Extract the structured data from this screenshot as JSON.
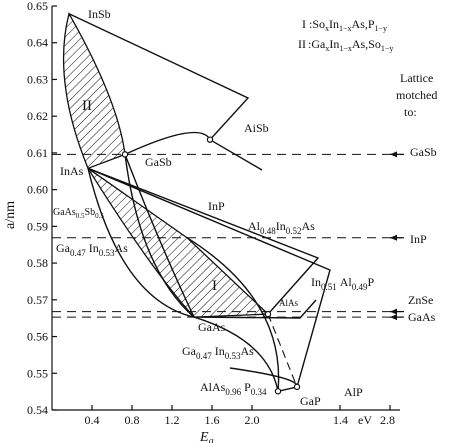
{
  "chart_data": {
    "type": "line",
    "xlabel": "E_g",
    "xlabel_main": "E",
    "xlabel_sub": "g",
    "ylabel": "a/nm",
    "xlim": [
      0,
      2.4
    ],
    "ylim": [
      0.54,
      0.65
    ],
    "x_ticks": [
      {
        "v": 0.4,
        "t": "0.4"
      },
      {
        "v": 0.8,
        "t": "0.8"
      },
      {
        "v": 1.2,
        "t": "1.2"
      },
      {
        "v": 1.6,
        "t": "1.6"
      },
      {
        "v": 2.0,
        "t": "2.0"
      }
    ],
    "x_ticks_right_labels": [
      "1.4",
      "eV",
      "2.8"
    ],
    "y_ticks": [
      {
        "v": 0.54,
        "t": "0.54"
      },
      {
        "v": 0.55,
        "t": "0.55"
      },
      {
        "v": 0.56,
        "t": "0.56"
      },
      {
        "v": 0.57,
        "t": "0.57"
      },
      {
        "v": 0.58,
        "t": "0.58"
      },
      {
        "v": 0.59,
        "t": "0.59"
      },
      {
        "v": 0.6,
        "t": "0.60"
      },
      {
        "v": 0.61,
        "t": "0.61"
      },
      {
        "v": 0.62,
        "t": "0.62"
      },
      {
        "v": 0.63,
        "t": "0.63"
      },
      {
        "v": 0.64,
        "t": "0.64"
      },
      {
        "v": 0.65,
        "t": "0.65"
      }
    ],
    "legend": {
      "I": {
        "numeral": "I",
        "main": ":So",
        "s1": "x",
        "m2": "In",
        "s2": "1−x",
        "m3": "As,P",
        "s3": "1−y"
      },
      "II": {
        "numeral": "II",
        "main": ":Ga",
        "s1": "x",
        "m2": "In",
        "s2": "1−x",
        "m3": "As,So",
        "s3": "1−y"
      }
    },
    "lattice_note": [
      "Lattice",
      "motched",
      "to:"
    ],
    "reference_lines": [
      {
        "name": "GaSb",
        "y": 0.6096
      },
      {
        "name": "InP",
        "y": 0.5869
      },
      {
        "name": "ZnSe",
        "y": 0.5668
      },
      {
        "name": "GaAs",
        "y": 0.5653
      }
    ],
    "compounds": [
      {
        "name": "InSb",
        "x": 0.17,
        "y": 0.6479
      },
      {
        "name": "InAs",
        "x": 0.36,
        "y": 0.6058
      },
      {
        "name": "GaSb",
        "x": 0.73,
        "y": 0.6096
      },
      {
        "name": "AiSb",
        "x": 1.58,
        "y": 0.6136
      },
      {
        "name": "InP",
        "x": 1.35,
        "y": 0.5869
      },
      {
        "name": "GaAs",
        "x": 1.42,
        "y": 0.5653
      },
      {
        "name": "AlAs",
        "x": 2.16,
        "y": 0.5661
      },
      {
        "name": "GaP",
        "x": 2.26,
        "y": 0.5451
      },
      {
        "name": "AlP",
        "x": 2.45,
        "y": 0.5463
      }
    ],
    "region_labels": {
      "I": "I",
      "II": "II"
    },
    "annotations": {
      "gaassb": {
        "m1": "GaAs",
        "s1": "0.5",
        "m2": "Sb",
        "s2": "0.5"
      },
      "gainas_left": {
        "m1": "Ga",
        "s1": "0.47",
        "m2": "In",
        "s2": "0.53",
        "m3": "As"
      },
      "alinas": {
        "m1": "Al",
        "s1": "0.48",
        "m2": "In",
        "s2": "0.52",
        "m3": "As"
      },
      "inalp": {
        "m1": "In",
        "s1": "0.51",
        "m2": "Al",
        "s2": "0.49",
        "m3": "P"
      },
      "gainas_bottom": {
        "m1": "Ga",
        "s1": "0.47",
        "m2": "In",
        "s2": "0.53",
        "m3": "As"
      },
      "alasp": {
        "m1": "AlAs",
        "s1": "0.96",
        "m2": "P",
        "s2": "0.34"
      }
    }
  }
}
